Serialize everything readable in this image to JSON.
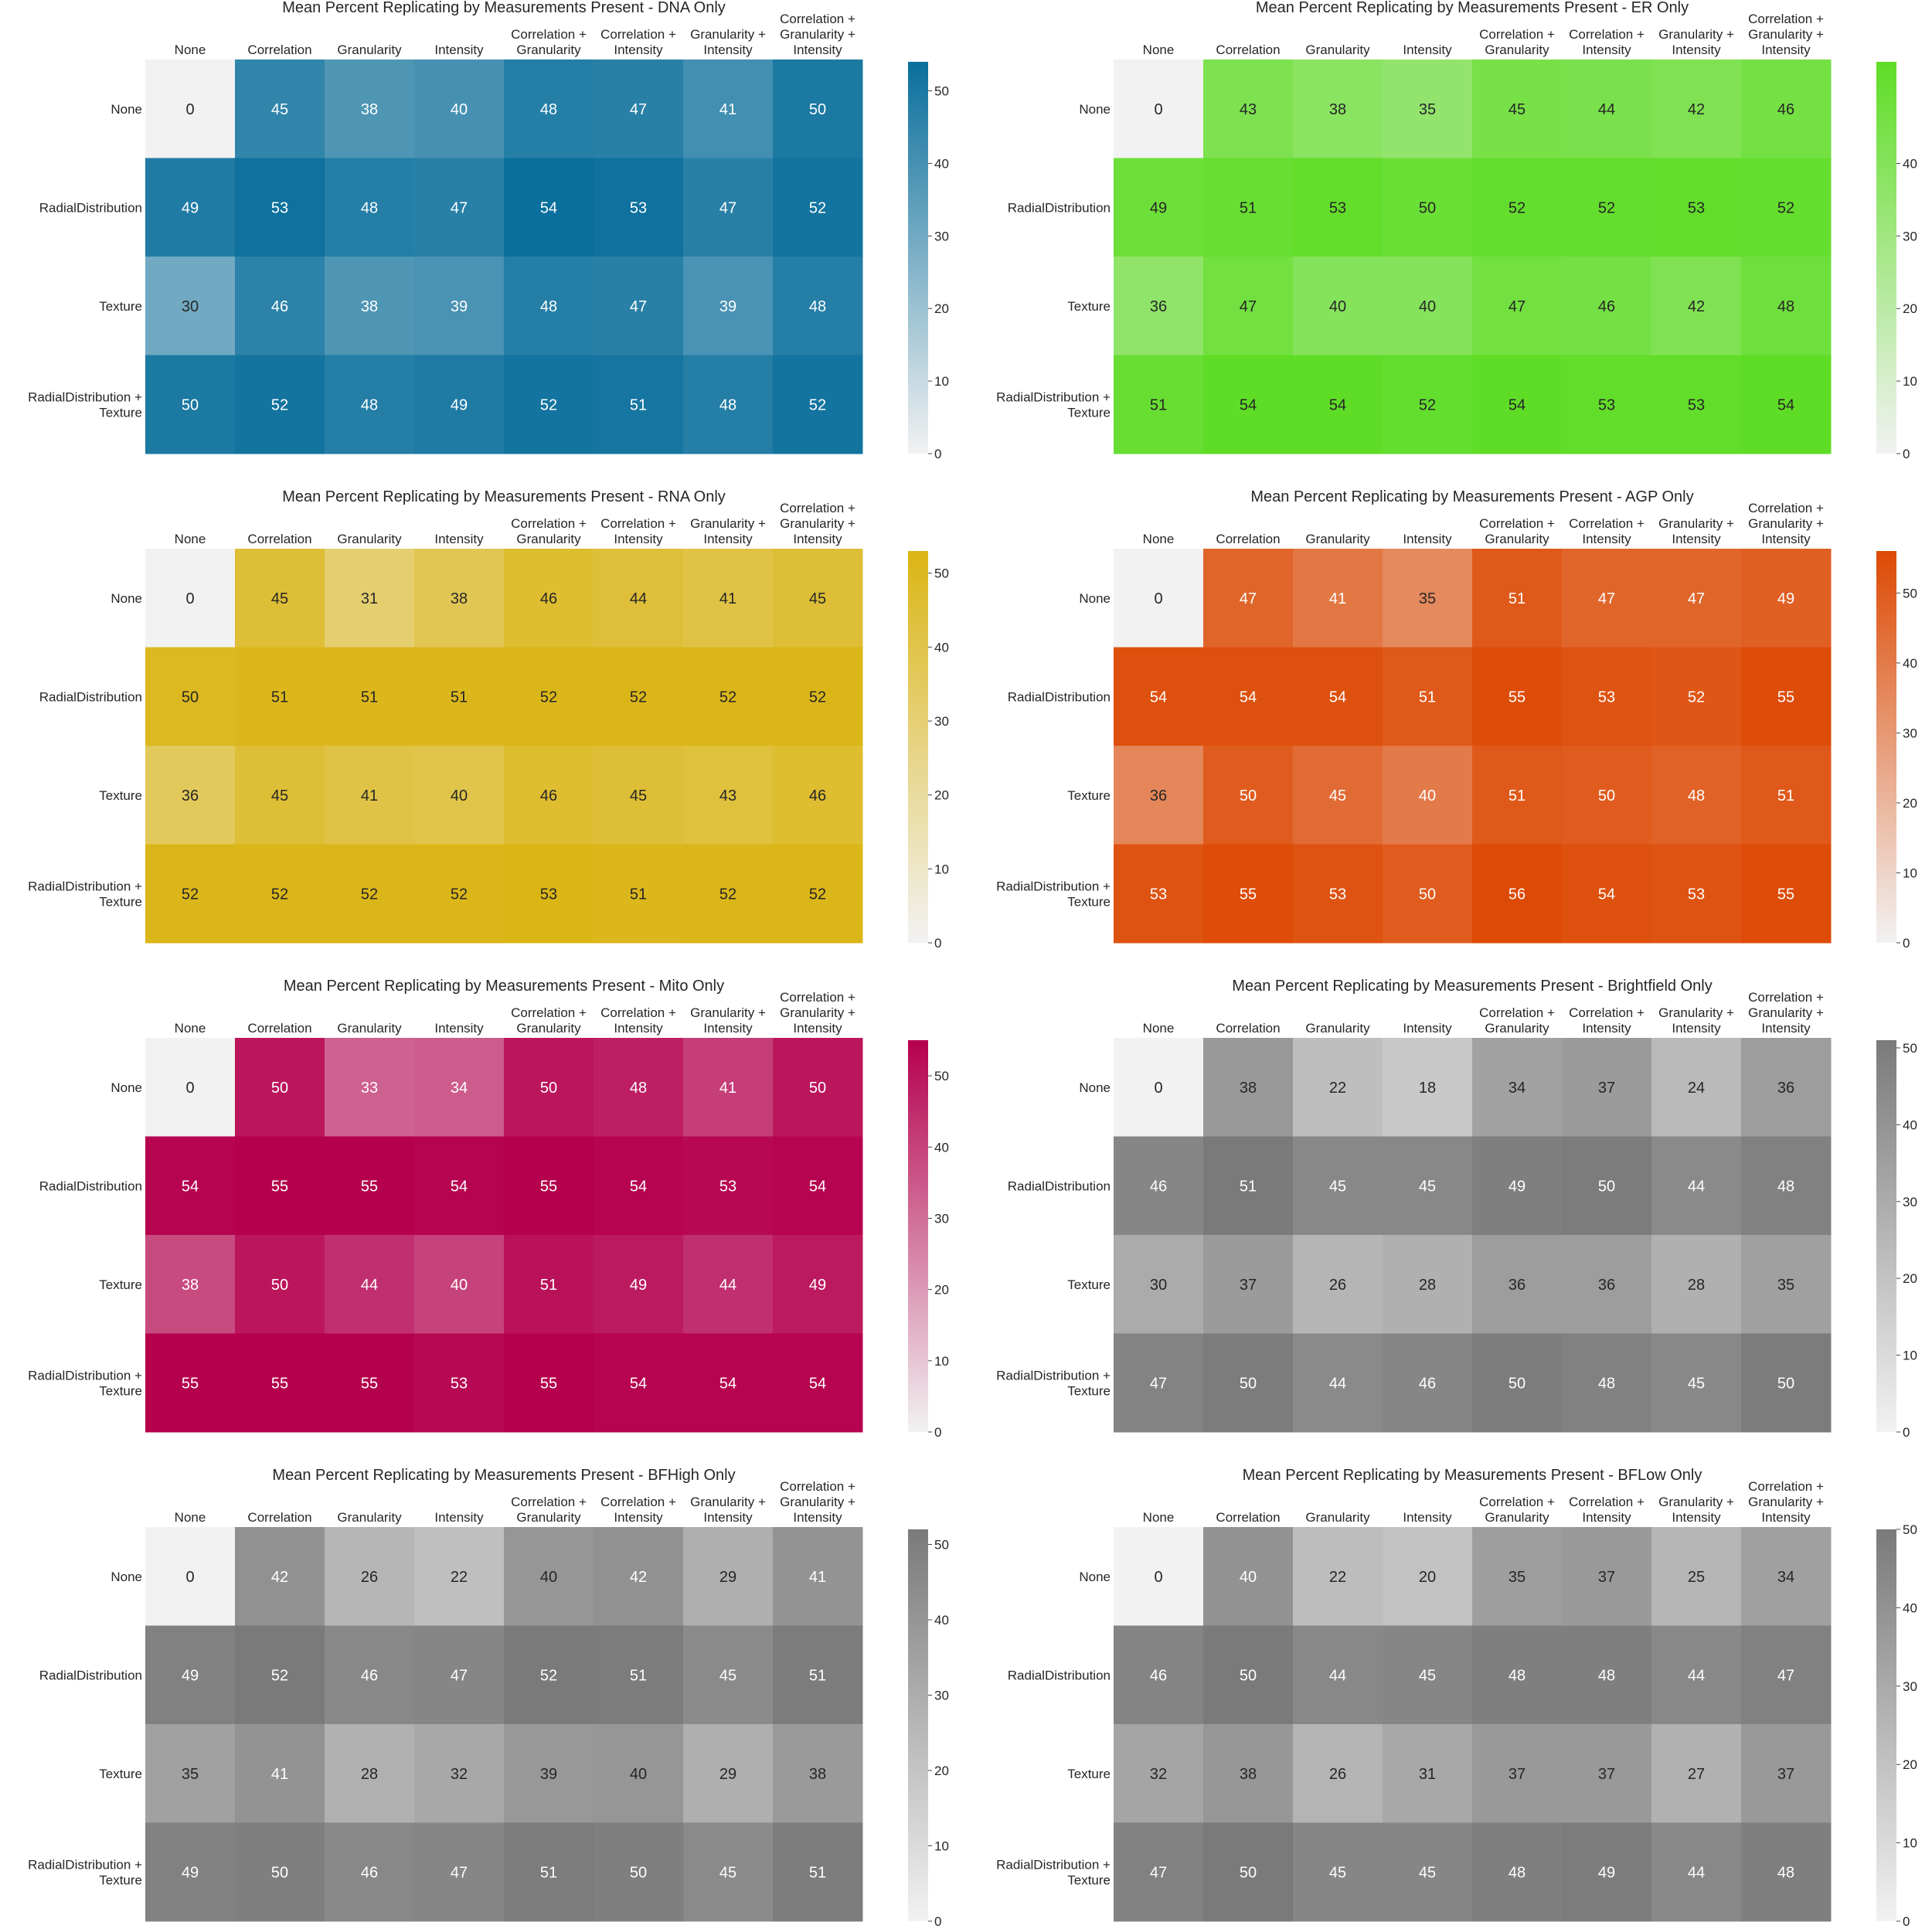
{
  "figure_title": "",
  "row_labels": [
    [
      "None"
    ],
    [
      "RadialDistribution"
    ],
    [
      "Texture"
    ],
    [
      "RadialDistribution +",
      "Texture"
    ]
  ],
  "column_labels": [
    [
      "None"
    ],
    [
      "Correlation"
    ],
    [
      "Granularity"
    ],
    [
      "Intensity"
    ],
    [
      "Correlation +",
      "Granularity"
    ],
    [
      "Correlation +",
      "Intensity"
    ],
    [
      "Granularity +",
      "Intensity"
    ],
    [
      "Correlation +",
      "Granularity +",
      "Intensity"
    ]
  ],
  "chart_data": [
    {
      "type": "heatmap",
      "title": "Mean Percent Replicating by Measurements Present - DNA Only",
      "color": "#0a6f9c",
      "colorbar_max": 54,
      "colorbar_ticks": [
        0,
        10,
        20,
        30,
        40,
        50
      ],
      "values": [
        [
          0,
          45,
          38,
          40,
          48,
          47,
          41,
          50
        ],
        [
          49,
          53,
          48,
          47,
          54,
          53,
          47,
          52
        ],
        [
          30,
          46,
          38,
          39,
          48,
          47,
          39,
          48
        ],
        [
          50,
          52,
          48,
          49,
          52,
          51,
          48,
          52
        ]
      ]
    },
    {
      "type": "heatmap",
      "title": "Mean Percent Replicating by Measurements Present - ER Only",
      "color": "#5fdd26",
      "colorbar_max": 54,
      "colorbar_ticks": [
        0,
        10,
        20,
        30,
        40
      ],
      "values": [
        [
          0,
          43,
          38,
          35,
          45,
          44,
          42,
          46
        ],
        [
          49,
          51,
          53,
          50,
          52,
          52,
          53,
          52
        ],
        [
          36,
          47,
          40,
          40,
          47,
          46,
          42,
          48
        ],
        [
          51,
          54,
          54,
          52,
          54,
          53,
          53,
          54
        ]
      ]
    },
    {
      "type": "heatmap",
      "title": "Mean Percent Replicating by Measurements Present - RNA Only",
      "color": "#dbb514",
      "colorbar_max": 53,
      "colorbar_ticks": [
        0,
        10,
        20,
        30,
        40,
        50
      ],
      "values": [
        [
          0,
          45,
          31,
          38,
          46,
          44,
          41,
          45
        ],
        [
          50,
          51,
          51,
          51,
          52,
          52,
          52,
          52
        ],
        [
          36,
          45,
          41,
          40,
          46,
          45,
          43,
          46
        ],
        [
          52,
          52,
          52,
          52,
          53,
          51,
          52,
          52
        ]
      ]
    },
    {
      "type": "heatmap",
      "title": "Mean Percent Replicating by Measurements Present - AGP Only",
      "color": "#dd4a05",
      "colorbar_max": 56,
      "colorbar_ticks": [
        0,
        10,
        20,
        30,
        40,
        50
      ],
      "values": [
        [
          0,
          47,
          41,
          35,
          51,
          47,
          47,
          49
        ],
        [
          54,
          54,
          54,
          51,
          55,
          53,
          52,
          55
        ],
        [
          36,
          50,
          45,
          40,
          51,
          50,
          48,
          51
        ],
        [
          53,
          55,
          53,
          50,
          56,
          54,
          53,
          55
        ]
      ]
    },
    {
      "type": "heatmap",
      "title": "Mean Percent Replicating by Measurements Present - Mito Only",
      "color": "#b5004d",
      "colorbar_max": 55,
      "colorbar_ticks": [
        0,
        10,
        20,
        30,
        40,
        50
      ],
      "values": [
        [
          0,
          50,
          33,
          34,
          50,
          48,
          41,
          50
        ],
        [
          54,
          55,
          55,
          54,
          55,
          54,
          53,
          54
        ],
        [
          38,
          50,
          44,
          40,
          51,
          49,
          44,
          49
        ],
        [
          55,
          55,
          55,
          53,
          55,
          54,
          54,
          54
        ]
      ]
    },
    {
      "type": "heatmap",
      "title": "Mean Percent Replicating by Measurements Present - Brightfield Only",
      "color": "#7a7a7a",
      "colorbar_max": 51,
      "colorbar_ticks": [
        0,
        10,
        20,
        30,
        40,
        50
      ],
      "values": [
        [
          0,
          38,
          22,
          18,
          34,
          37,
          24,
          36
        ],
        [
          46,
          51,
          45,
          45,
          49,
          50,
          44,
          48
        ],
        [
          30,
          37,
          26,
          28,
          36,
          36,
          28,
          35
        ],
        [
          47,
          50,
          44,
          46,
          50,
          48,
          45,
          50
        ]
      ]
    },
    {
      "type": "heatmap",
      "title": "Mean Percent Replicating by Measurements Present - BFHigh Only",
      "color": "#7a7a7a",
      "colorbar_max": 52,
      "colorbar_ticks": [
        0,
        10,
        20,
        30,
        40,
        50
      ],
      "values": [
        [
          0,
          42,
          26,
          22,
          40,
          42,
          29,
          41
        ],
        [
          49,
          52,
          46,
          47,
          52,
          51,
          45,
          51
        ],
        [
          35,
          41,
          28,
          32,
          39,
          40,
          29,
          38
        ],
        [
          49,
          50,
          46,
          47,
          51,
          50,
          45,
          51
        ]
      ]
    },
    {
      "type": "heatmap",
      "title": "Mean Percent Replicating by Measurements Present - BFLow Only",
      "color": "#7a7a7a",
      "colorbar_max": 50,
      "colorbar_ticks": [
        0,
        10,
        20,
        30,
        40,
        50
      ],
      "values": [
        [
          0,
          40,
          22,
          20,
          35,
          37,
          25,
          34
        ],
        [
          46,
          50,
          44,
          45,
          48,
          48,
          44,
          47
        ],
        [
          32,
          38,
          26,
          31,
          37,
          37,
          27,
          37
        ],
        [
          47,
          50,
          45,
          45,
          48,
          49,
          44,
          48
        ]
      ]
    }
  ]
}
